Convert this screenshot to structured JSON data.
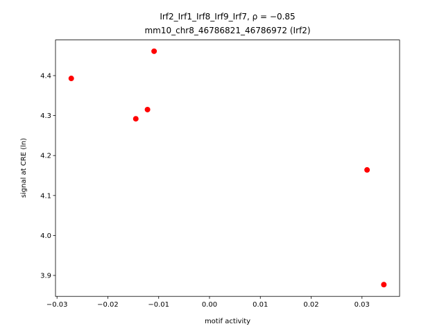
{
  "chart_data": {
    "type": "scatter",
    "title": [
      "Irf2_Irf1_Irf8_Irf9_Irf7, ρ = −0.85",
      "mm10_chr8_46786821_46786972 (Irf2)"
    ],
    "x_label": "motif activity",
    "y_label": "signal at CRE (ln)",
    "x": [
      -0.0272,
      -0.0109,
      -0.0122,
      -0.0145,
      0.031,
      0.0343
    ],
    "values": [
      4.393,
      4.461,
      4.315,
      4.292,
      4.164,
      3.877
    ],
    "color": "#ff0000",
    "xlim": [
      -0.0303,
      0.0374
    ],
    "ylim": [
      3.8476,
      4.4892
    ],
    "xticks": [
      {
        "value": -0.03,
        "label": "−0.03"
      },
      {
        "value": -0.02,
        "label": "−0.02"
      },
      {
        "value": -0.01,
        "label": "−0.01"
      },
      {
        "value": 0,
        "label": "0.00"
      },
      {
        "value": 0.01,
        "label": "0.01"
      },
      {
        "value": 0.02,
        "label": "0.02"
      },
      {
        "value": 0.03,
        "label": "0.03"
      }
    ],
    "yticks": [
      3.9,
      {
        "value": 4.0,
        "label": "4.0"
      },
      4.1,
      4.2,
      4.3,
      4.4
    ]
  }
}
